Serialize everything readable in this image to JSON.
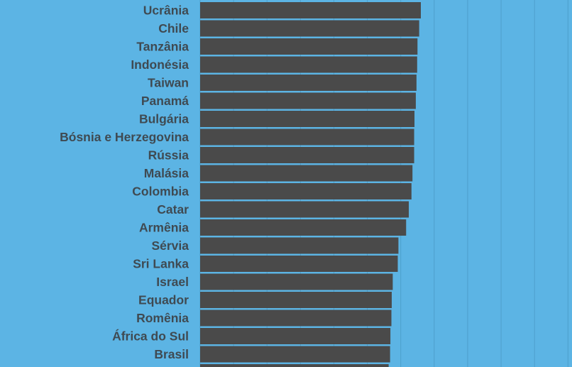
{
  "chart_data": {
    "type": "bar",
    "orientation": "horizontal",
    "title": "",
    "xlabel": "",
    "ylabel": "",
    "grid": true,
    "colors": {
      "background": "#5cb4e4",
      "bar": "#4a4a4a",
      "gridline": "#4e9fcc",
      "label": "#3f4a52"
    },
    "categories": [
      "Ucrânia",
      "Chile",
      "Tanzânia",
      "Indonésia",
      "Taiwan",
      "Panamá",
      "Bulgária",
      "Bósnia e Herzegovina",
      "Rússia",
      "Malásia",
      "Colombia",
      "Catar",
      "Armênia",
      "Sérvia",
      "Sri Lanka",
      "Israel",
      "Equador",
      "Romênia",
      "África do Sul",
      "Brasil"
    ],
    "values": [
      66,
      65.5,
      65,
      64.9,
      64.7,
      64.5,
      64.1,
      64,
      64,
      63.5,
      63.2,
      62.4,
      61.6,
      59.3,
      59.1,
      57.6,
      57.3,
      57.2,
      56.9,
      56.8
    ]
  }
}
